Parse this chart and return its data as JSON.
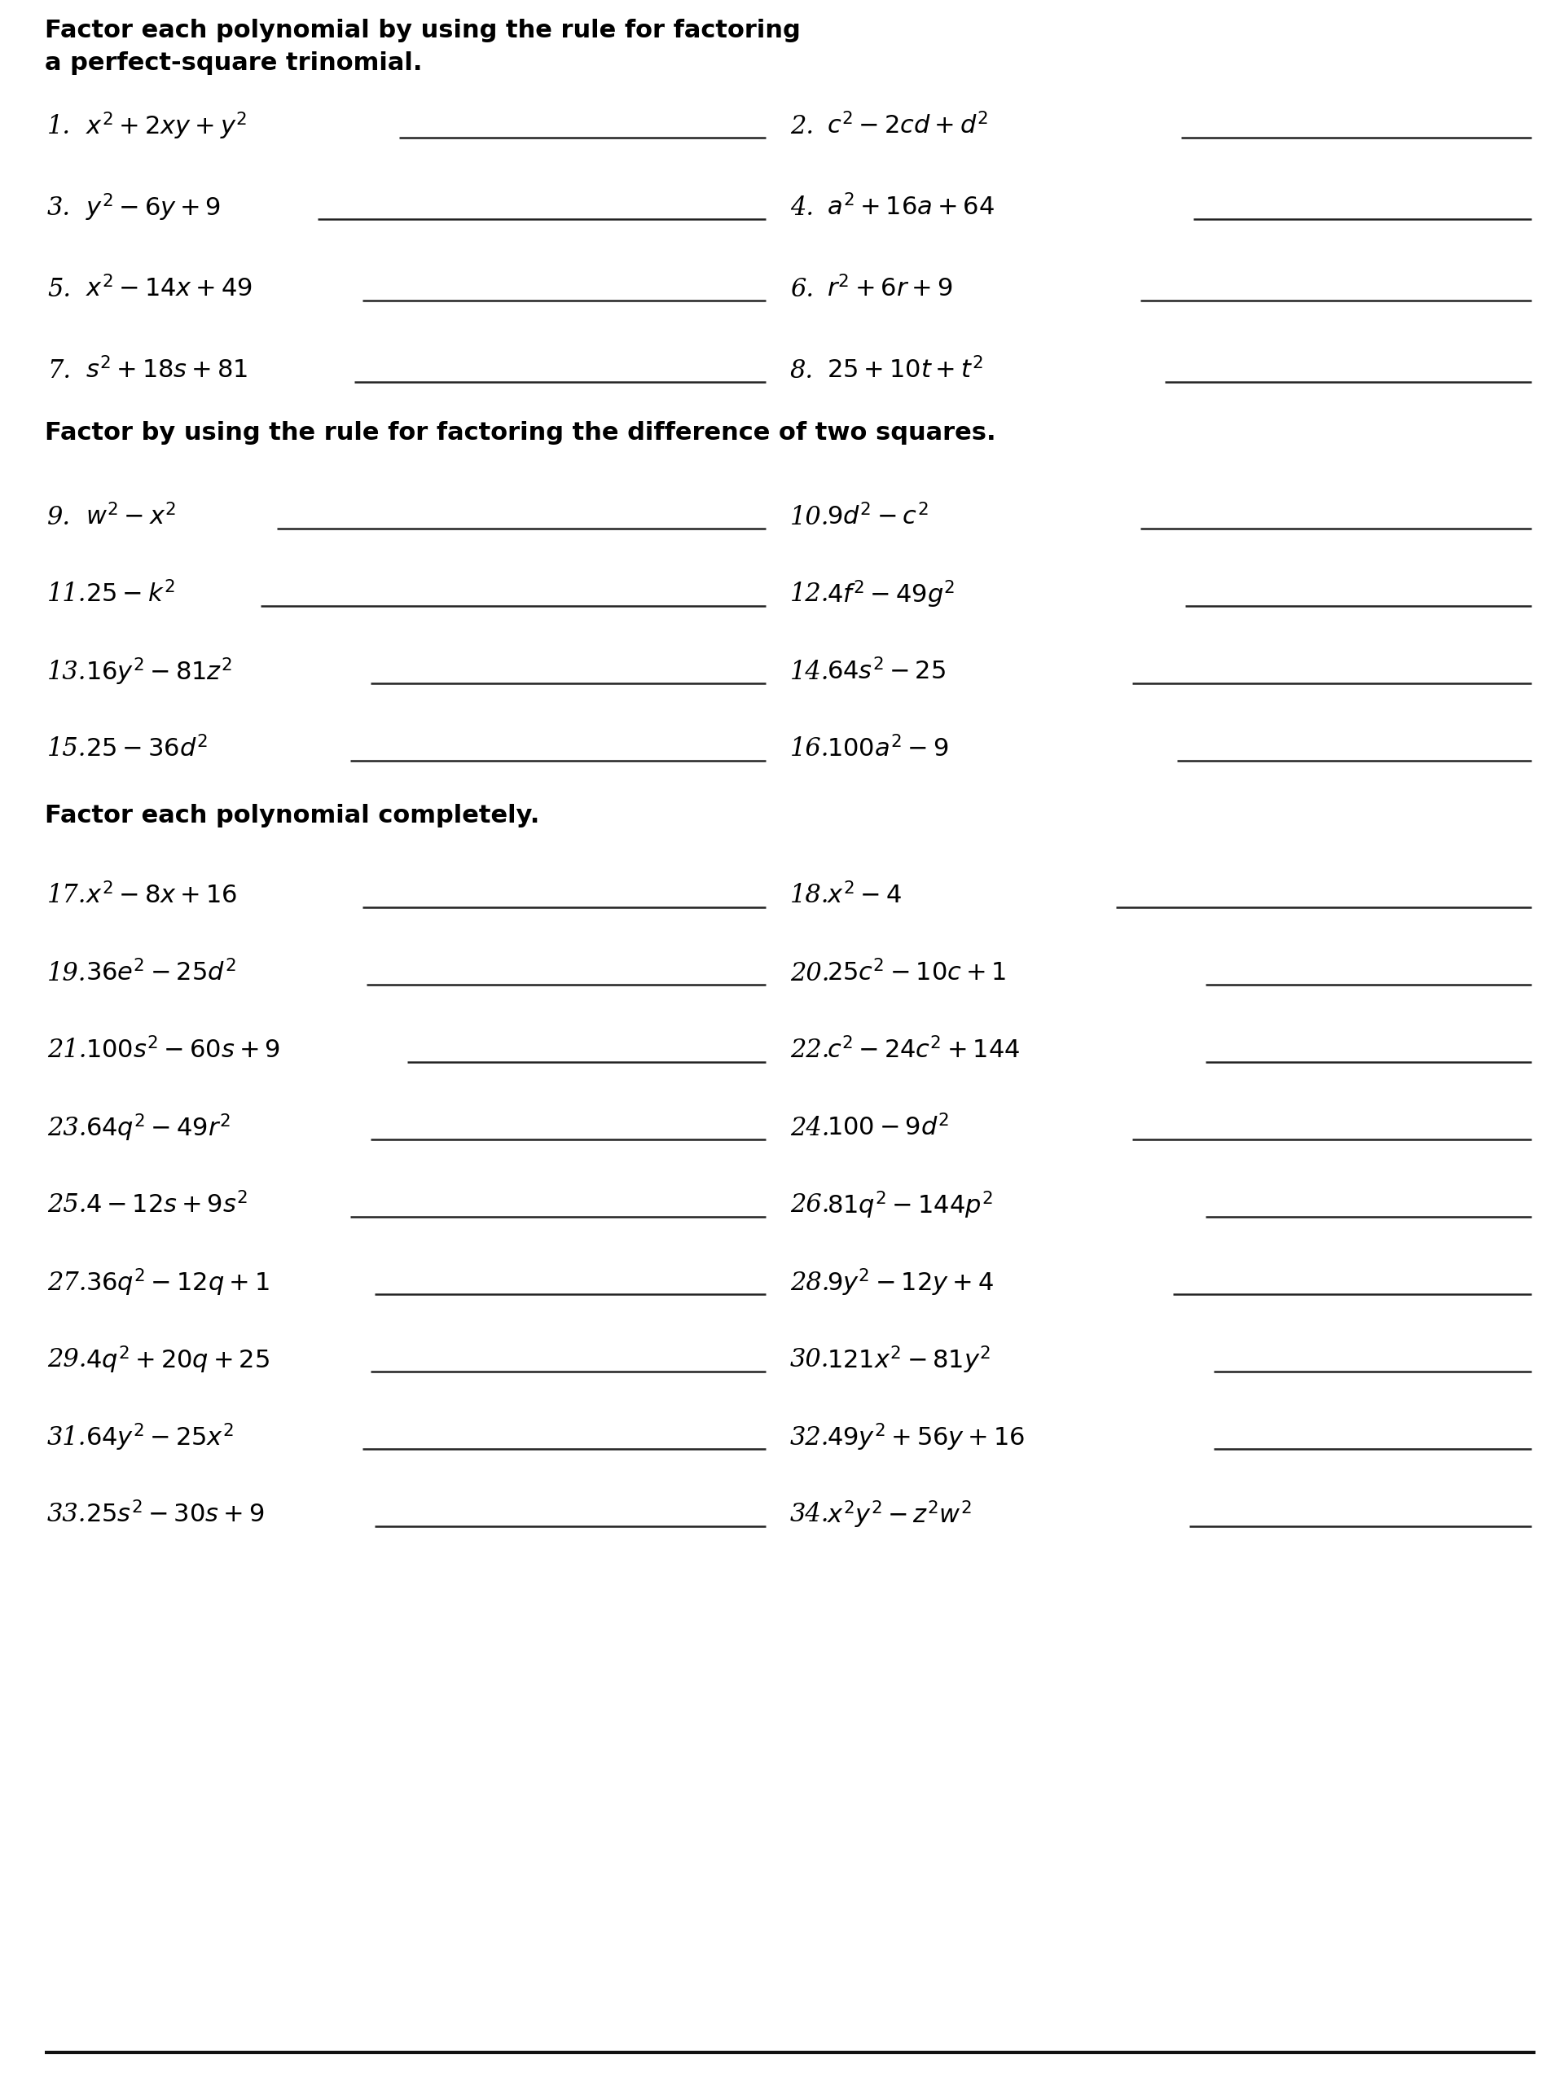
{
  "bg_color": "#ffffff",
  "text_color": "#000000",
  "section1_title_line1": "Factor each polynomial by using the rule for factoring",
  "section1_title_line2": "a perfect-square trinomial.",
  "section2_title": "Factor by using the rule for factoring the difference of two squares.",
  "section3_title": "Factor each polynomial completely.",
  "problems": [
    {
      "num": "1",
      "expr": "$x^2 + 2xy + y^2$",
      "col": 0,
      "row": 0,
      "section": 1
    },
    {
      "num": "2",
      "expr": "$c^2 - 2cd + d^2$",
      "col": 1,
      "row": 0,
      "section": 1
    },
    {
      "num": "3",
      "expr": "$y^2 - 6y + 9$",
      "col": 0,
      "row": 1,
      "section": 1
    },
    {
      "num": "4",
      "expr": "$a^2 + 16a + 64$",
      "col": 1,
      "row": 1,
      "section": 1
    },
    {
      "num": "5",
      "expr": "$x^2 - 14x + 49$",
      "col": 0,
      "row": 2,
      "section": 1
    },
    {
      "num": "6",
      "expr": "$r^2 + 6r + 9$",
      "col": 1,
      "row": 2,
      "section": 1
    },
    {
      "num": "7",
      "expr": "$s^2 + 18s + 81$",
      "col": 0,
      "row": 3,
      "section": 1
    },
    {
      "num": "8",
      "expr": "$25 + 10t + t^2$",
      "col": 1,
      "row": 3,
      "section": 1
    },
    {
      "num": "9",
      "expr": "$w^2 - x^2$",
      "col": 0,
      "row": 0,
      "section": 2
    },
    {
      "num": "10",
      "expr": "$9d^2 - c^2$",
      "col": 1,
      "row": 0,
      "section": 2
    },
    {
      "num": "11",
      "expr": "$25 - k^2$",
      "col": 0,
      "row": 1,
      "section": 2
    },
    {
      "num": "12",
      "expr": "$4f^2 - 49g^2$",
      "col": 1,
      "row": 1,
      "section": 2
    },
    {
      "num": "13",
      "expr": "$16y^2 - 81z^2$",
      "col": 0,
      "row": 2,
      "section": 2
    },
    {
      "num": "14",
      "expr": "$64s^2 - 25$",
      "col": 1,
      "row": 2,
      "section": 2
    },
    {
      "num": "15",
      "expr": "$25 - 36d^2$",
      "col": 0,
      "row": 3,
      "section": 2
    },
    {
      "num": "16",
      "expr": "$100a^2 - 9$",
      "col": 1,
      "row": 3,
      "section": 2
    },
    {
      "num": "17",
      "expr": "$x^2 - 8x + 16$",
      "col": 0,
      "row": 0,
      "section": 3
    },
    {
      "num": "18",
      "expr": "$x^2 - 4$",
      "col": 1,
      "row": 0,
      "section": 3
    },
    {
      "num": "19",
      "expr": "$36e^2 - 25d^2$",
      "col": 0,
      "row": 1,
      "section": 3
    },
    {
      "num": "20",
      "expr": "$25c^2 - 10c + 1$",
      "col": 1,
      "row": 1,
      "section": 3
    },
    {
      "num": "21",
      "expr": "$100s^2 - 60s + 9$",
      "col": 0,
      "row": 2,
      "section": 3
    },
    {
      "num": "22",
      "expr": "$c^2 - 24c^2 + 144$",
      "col": 1,
      "row": 2,
      "section": 3
    },
    {
      "num": "23",
      "expr": "$64q^2 - 49r^2$",
      "col": 0,
      "row": 3,
      "section": 3
    },
    {
      "num": "24",
      "expr": "$100 - 9d^2$",
      "col": 1,
      "row": 3,
      "section": 3
    },
    {
      "num": "25",
      "expr": "$4 - 12s + 9s^2$",
      "col": 0,
      "row": 4,
      "section": 3
    },
    {
      "num": "26",
      "expr": "$81q^2 - 144p^2$",
      "col": 1,
      "row": 4,
      "section": 3
    },
    {
      "num": "27",
      "expr": "$36q^2 - 12q + 1$",
      "col": 0,
      "row": 5,
      "section": 3
    },
    {
      "num": "28",
      "expr": "$9y^2 - 12y + 4$",
      "col": 1,
      "row": 5,
      "section": 3
    },
    {
      "num": "29",
      "expr": "$4q^2 + 20q + 25$",
      "col": 0,
      "row": 6,
      "section": 3
    },
    {
      "num": "30",
      "expr": "$121x^2 - 81y^2$",
      "col": 1,
      "row": 6,
      "section": 3
    },
    {
      "num": "31",
      "expr": "$64y^2 - 25x^2$",
      "col": 0,
      "row": 7,
      "section": 3
    },
    {
      "num": "32",
      "expr": "$49y^2 + 56y + 16$",
      "col": 1,
      "row": 7,
      "section": 3
    },
    {
      "num": "33",
      "expr": "$25s^2 - 30s + 9$",
      "col": 0,
      "row": 8,
      "section": 3
    },
    {
      "num": "34",
      "expr": "$x^2y^2 - z^2w^2$",
      "col": 1,
      "row": 8,
      "section": 3
    }
  ],
  "title_fontsize": 22,
  "prob_fontsize": 22,
  "num_fontsize": 22
}
